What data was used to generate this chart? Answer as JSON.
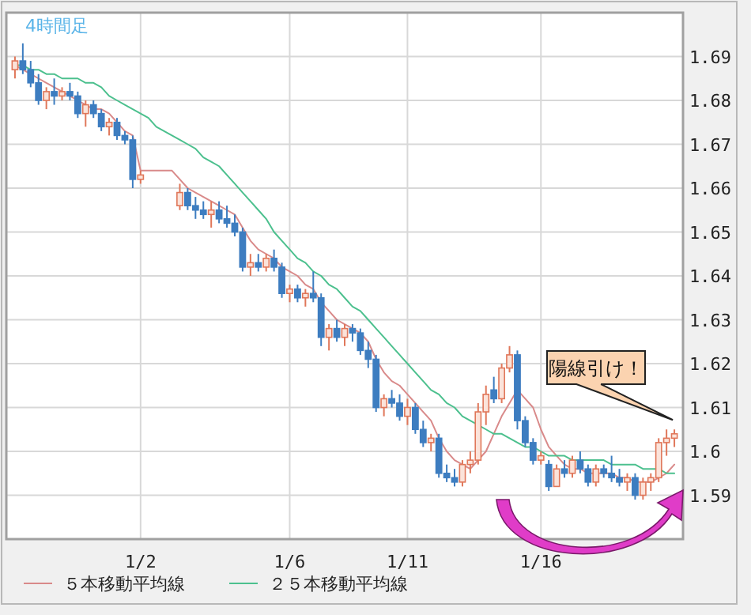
{
  "chart_data": {
    "type": "candlestick",
    "title": "4時間足",
    "categories": [
      null,
      null,
      null,
      null,
      null,
      null,
      null,
      null,
      null,
      null,
      null,
      null,
      null,
      null,
      null,
      null,
      "1/2",
      null,
      null,
      null,
      null,
      null,
      null,
      null,
      null,
      null,
      null,
      null,
      null,
      null,
      null,
      null,
      null,
      null,
      null,
      "1/6",
      null,
      null,
      null,
      null,
      null,
      null,
      null,
      null,
      null,
      null,
      null,
      null,
      null,
      null,
      "1/11",
      null,
      null,
      null,
      null,
      null,
      null,
      null,
      null,
      null,
      null,
      null,
      null,
      null,
      null,
      null,
      null,
      "1/16",
      null,
      null,
      null,
      null,
      null,
      null,
      null,
      null,
      null,
      null,
      null,
      null,
      null,
      null,
      null,
      null,
      null
    ],
    "ohlc": [
      [
        1.687,
        1.69,
        1.685,
        1.689
      ],
      [
        1.689,
        1.693,
        1.686,
        1.687
      ],
      [
        1.687,
        1.689,
        1.683,
        1.684
      ],
      [
        1.684,
        1.686,
        1.679,
        1.68
      ],
      [
        1.68,
        1.683,
        1.678,
        1.682
      ],
      [
        1.682,
        1.685,
        1.679,
        1.681
      ],
      [
        1.681,
        1.683,
        1.68,
        1.682
      ],
      [
        1.682,
        1.684,
        1.68,
        1.681
      ],
      [
        1.681,
        1.682,
        1.676,
        1.677
      ],
      [
        1.677,
        1.68,
        1.674,
        1.679
      ],
      [
        1.679,
        1.68,
        1.676,
        1.677
      ],
      [
        1.677,
        1.678,
        1.673,
        1.674
      ],
      [
        1.674,
        1.676,
        1.672,
        1.675
      ],
      [
        1.675,
        1.676,
        1.671,
        1.672
      ],
      [
        1.672,
        1.673,
        1.67,
        1.671
      ],
      [
        1.671,
        1.672,
        1.66,
        1.662
      ],
      [
        1.662,
        1.664,
        1.661,
        1.663
      ],
      null,
      null,
      null,
      null,
      [
        1.656,
        1.661,
        1.655,
        1.659
      ],
      [
        1.659,
        1.66,
        1.655,
        1.656
      ],
      [
        1.656,
        1.658,
        1.653,
        1.655
      ],
      [
        1.655,
        1.657,
        1.653,
        1.654
      ],
      [
        1.654,
        1.657,
        1.651,
        1.655
      ],
      [
        1.655,
        1.657,
        1.652,
        1.653
      ],
      [
        1.653,
        1.656,
        1.651,
        1.652
      ],
      [
        1.652,
        1.654,
        1.649,
        1.65
      ],
      [
        1.65,
        1.651,
        1.641,
        1.642
      ],
      [
        1.642,
        1.645,
        1.64,
        1.643
      ],
      [
        1.643,
        1.645,
        1.641,
        1.642
      ],
      [
        1.642,
        1.645,
        1.641,
        1.644
      ],
      [
        1.644,
        1.646,
        1.641,
        1.642
      ],
      [
        1.642,
        1.643,
        1.635,
        1.636
      ],
      [
        1.636,
        1.638,
        1.634,
        1.637
      ],
      [
        1.637,
        1.638,
        1.634,
        1.635
      ],
      [
        1.635,
        1.637,
        1.633,
        1.636
      ],
      [
        1.636,
        1.641,
        1.634,
        1.635
      ],
      [
        1.635,
        1.636,
        1.624,
        1.626
      ],
      [
        1.626,
        1.629,
        1.623,
        1.628
      ],
      [
        1.628,
        1.63,
        1.625,
        1.626
      ],
      [
        1.626,
        1.629,
        1.624,
        1.628
      ],
      [
        1.628,
        1.629,
        1.625,
        1.627
      ],
      [
        1.627,
        1.628,
        1.622,
        1.623
      ],
      [
        1.623,
        1.625,
        1.619,
        1.621
      ],
      [
        1.621,
        1.622,
        1.609,
        1.61
      ],
      [
        1.61,
        1.613,
        1.608,
        1.612
      ],
      [
        1.612,
        1.614,
        1.61,
        1.611
      ],
      [
        1.611,
        1.613,
        1.607,
        1.608
      ],
      [
        1.608,
        1.612,
        1.606,
        1.61
      ],
      [
        1.61,
        1.611,
        1.604,
        1.605
      ],
      [
        1.605,
        1.607,
        1.601,
        1.602
      ],
      [
        1.602,
        1.604,
        1.6,
        1.603
      ],
      [
        1.603,
        1.604,
        1.594,
        1.595
      ],
      [
        1.595,
        1.597,
        1.593,
        1.594
      ],
      [
        1.594,
        1.596,
        1.592,
        1.593
      ],
      [
        1.593,
        1.598,
        1.592,
        1.597
      ],
      [
        1.597,
        1.6,
        1.595,
        1.598
      ],
      [
        1.598,
        1.611,
        1.597,
        1.609
      ],
      [
        1.609,
        1.615,
        1.606,
        1.613
      ],
      [
        1.614,
        1.617,
        1.611,
        1.612
      ],
      [
        1.612,
        1.62,
        1.611,
        1.619
      ],
      [
        1.619,
        1.624,
        1.618,
        1.622
      ],
      [
        1.622,
        1.623,
        1.605,
        1.607
      ],
      [
        1.607,
        1.608,
        1.601,
        1.602
      ],
      [
        1.602,
        1.603,
        1.597,
        1.598
      ],
      [
        1.598,
        1.6,
        1.597,
        1.599
      ],
      [
        1.597,
        1.598,
        1.591,
        1.592
      ],
      [
        1.592,
        1.597,
        1.592,
        1.596
      ],
      [
        1.596,
        1.598,
        1.594,
        1.595
      ],
      [
        1.595,
        1.599,
        1.594,
        1.598
      ],
      [
        1.598,
        1.6,
        1.595,
        1.596
      ],
      [
        1.596,
        1.597,
        1.592,
        1.593
      ],
      [
        1.593,
        1.597,
        1.592,
        1.596
      ],
      [
        1.596,
        1.597,
        1.594,
        1.595
      ],
      [
        1.595,
        1.599,
        1.593,
        1.594
      ],
      [
        1.594,
        1.596,
        1.592,
        1.593
      ],
      [
        1.593,
        1.595,
        1.591,
        1.594
      ],
      [
        1.594,
        1.595,
        1.589,
        1.59
      ],
      [
        1.59,
        1.594,
        1.589,
        1.593
      ],
      [
        1.593,
        1.595,
        1.591,
        1.594
      ],
      [
        1.594,
        1.603,
        1.593,
        1.602
      ],
      [
        1.602,
        1.605,
        1.599,
        1.603
      ],
      [
        1.603,
        1.605,
        1.601,
        1.604
      ]
    ],
    "series": [
      {
        "name": "５本移動平均線",
        "type": "line",
        "color": "#d98a8a",
        "values": [
          1.688,
          1.687,
          1.686,
          1.685,
          1.684,
          1.683,
          1.682,
          1.681,
          1.68,
          1.679,
          1.678,
          1.678,
          1.677,
          1.675,
          1.673,
          1.672,
          1.664,
          1.664,
          1.664,
          1.664,
          1.664,
          1.662,
          1.66,
          1.659,
          1.658,
          1.657,
          1.656,
          1.655,
          1.654,
          1.651,
          1.648,
          1.646,
          1.645,
          1.644,
          1.642,
          1.641,
          1.64,
          1.638,
          1.637,
          1.634,
          1.632,
          1.63,
          1.629,
          1.628,
          1.627,
          1.625,
          1.621,
          1.618,
          1.616,
          1.615,
          1.613,
          1.611,
          1.609,
          1.607,
          1.603,
          1.6,
          1.598,
          1.597,
          1.596,
          1.598,
          1.6,
          1.604,
          1.608,
          1.611,
          1.614,
          1.612,
          1.61,
          1.605,
          1.601,
          1.599,
          1.597,
          1.596,
          1.596,
          1.595,
          1.595,
          1.595,
          1.595,
          1.594,
          1.594,
          1.593,
          1.593,
          1.593,
          1.594,
          1.595,
          1.597
        ]
      },
      {
        "name": "２５本移動平均線",
        "type": "line",
        "color": "#4cc08e",
        "values": [
          1.688,
          1.688,
          1.687,
          1.687,
          1.686,
          1.686,
          1.685,
          1.685,
          1.685,
          1.684,
          1.684,
          1.683,
          1.681,
          1.68,
          1.679,
          1.678,
          1.677,
          1.676,
          1.674,
          1.673,
          1.672,
          1.671,
          1.67,
          1.669,
          1.667,
          1.666,
          1.665,
          1.663,
          1.661,
          1.659,
          1.657,
          1.655,
          1.653,
          1.65,
          1.648,
          1.646,
          1.644,
          1.643,
          1.641,
          1.64,
          1.638,
          1.637,
          1.635,
          1.633,
          1.632,
          1.63,
          1.628,
          1.626,
          1.624,
          1.622,
          1.62,
          1.618,
          1.616,
          1.614,
          1.613,
          1.611,
          1.61,
          1.608,
          1.607,
          1.606,
          1.605,
          1.604,
          1.604,
          1.603,
          1.602,
          1.601,
          1.601,
          1.6,
          1.599,
          1.599,
          1.599,
          1.598,
          1.598,
          1.598,
          1.598,
          1.598,
          1.597,
          1.597,
          1.597,
          1.597,
          1.596,
          1.596,
          1.596,
          1.595,
          1.595
        ]
      }
    ],
    "ylim": [
      1.58,
      1.7
    ],
    "yticks": [
      1.59,
      1.6,
      1.61,
      1.62,
      1.63,
      1.64,
      1.65,
      1.66,
      1.67,
      1.68,
      1.69
    ],
    "grid": true,
    "legend": "bottom",
    "annotations": [
      "陽線引け！"
    ]
  }
}
